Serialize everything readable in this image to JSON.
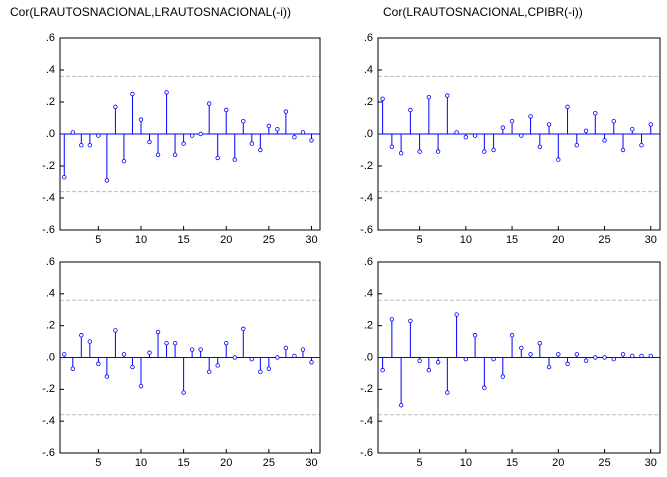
{
  "chart_data": [
    {
      "type": "stem",
      "title": "Cor(LRAUTOSNACIONAL,LRAUTOSNACIONAL(-i))",
      "color": "#0000ff",
      "band_color": "#bbbbbb",
      "x": [
        1,
        2,
        3,
        4,
        5,
        6,
        7,
        8,
        9,
        10,
        11,
        12,
        13,
        14,
        15,
        16,
        17,
        18,
        19,
        20,
        21,
        22,
        23,
        24,
        25,
        26,
        27,
        28,
        29,
        30
      ],
      "values": [
        -0.27,
        0.01,
        -0.07,
        -0.07,
        -0.01,
        -0.29,
        0.17,
        -0.17,
        0.25,
        0.09,
        -0.05,
        -0.13,
        0.26,
        -0.13,
        -0.06,
        -0.01,
        0.0,
        0.19,
        -0.15,
        0.15,
        -0.16,
        0.08,
        -0.06,
        -0.1,
        0.05,
        0.03,
        0.14,
        -0.02,
        0.01,
        -0.04
      ],
      "bands": [
        -0.36,
        0.36
      ],
      "xlim": [
        0.5,
        31
      ],
      "xticks": [
        5,
        10,
        15,
        20,
        25,
        30
      ],
      "ylim": [
        -0.6,
        0.6
      ],
      "yticks": [
        {
          "value": -0.6,
          "label": "-.6"
        },
        {
          "value": -0.4,
          "label": "-.4"
        },
        {
          "value": -0.2,
          "label": "-.2"
        },
        {
          "value": 0,
          "label": ".0"
        },
        {
          "value": 0.2,
          "label": ".2"
        },
        {
          "value": 0.4,
          "label": ".4"
        },
        {
          "value": 0.6,
          "label": ".6"
        }
      ]
    },
    {
      "type": "stem",
      "title": "Cor(LRAUTOSNACIONAL,CPIBR(-i))",
      "color": "#0000ff",
      "band_color": "#bbbbbb",
      "x": [
        1,
        2,
        3,
        4,
        5,
        6,
        7,
        8,
        9,
        10,
        11,
        12,
        13,
        14,
        15,
        16,
        17,
        18,
        19,
        20,
        21,
        22,
        23,
        24,
        25,
        26,
        27,
        28,
        29,
        30
      ],
      "values": [
        0.22,
        -0.08,
        -0.12,
        0.15,
        -0.11,
        0.23,
        -0.11,
        0.24,
        0.01,
        -0.02,
        -0.01,
        -0.11,
        -0.1,
        0.04,
        0.08,
        -0.01,
        0.11,
        -0.08,
        0.06,
        -0.16,
        0.17,
        -0.07,
        0.02,
        0.13,
        -0.04,
        0.08,
        -0.1,
        0.03,
        -0.07,
        0.06
      ],
      "bands": [
        -0.36,
        0.36
      ],
      "xlim": [
        0.5,
        31
      ],
      "xticks": [
        5,
        10,
        15,
        20,
        25,
        30
      ],
      "ylim": [
        -0.6,
        0.6
      ],
      "yticks": [
        {
          "value": -0.6,
          "label": "-.6"
        },
        {
          "value": -0.4,
          "label": "-.4"
        },
        {
          "value": -0.2,
          "label": "-.2"
        },
        {
          "value": 0,
          "label": ".0"
        },
        {
          "value": 0.2,
          "label": ".2"
        },
        {
          "value": 0.4,
          "label": ".4"
        },
        {
          "value": 0.6,
          "label": ".6"
        }
      ]
    },
    {
      "type": "stem",
      "color": "#0000ff",
      "band_color": "#bbbbbb",
      "x": [
        1,
        2,
        3,
        4,
        5,
        6,
        7,
        8,
        9,
        10,
        11,
        12,
        13,
        14,
        15,
        16,
        17,
        18,
        19,
        20,
        21,
        22,
        23,
        24,
        25,
        26,
        27,
        28,
        29,
        30
      ],
      "values": [
        0.02,
        -0.07,
        0.14,
        0.1,
        -0.04,
        -0.12,
        0.17,
        0.02,
        -0.06,
        -0.18,
        0.03,
        0.16,
        0.09,
        0.09,
        -0.22,
        0.05,
        0.05,
        -0.09,
        -0.05,
        0.09,
        0.0,
        0.18,
        -0.01,
        -0.09,
        -0.07,
        0.0,
        0.06,
        0.01,
        0.05,
        -0.03
      ],
      "bands": [
        -0.36,
        0.36
      ],
      "xlim": [
        0.5,
        31
      ],
      "xticks": [
        5,
        10,
        15,
        20,
        25,
        30
      ],
      "ylim": [
        -0.6,
        0.6
      ],
      "yticks": [
        {
          "value": -0.6,
          "label": "-.6"
        },
        {
          "value": -0.4,
          "label": "-.4"
        },
        {
          "value": -0.2,
          "label": "-.2"
        },
        {
          "value": 0,
          "label": ".0"
        },
        {
          "value": 0.2,
          "label": ".2"
        },
        {
          "value": 0.4,
          "label": ".4"
        },
        {
          "value": 0.6,
          "label": ".6"
        }
      ]
    },
    {
      "type": "stem",
      "color": "#0000ff",
      "band_color": "#bbbbbb",
      "x": [
        1,
        2,
        3,
        4,
        5,
        6,
        7,
        8,
        9,
        10,
        11,
        12,
        13,
        14,
        15,
        16,
        17,
        18,
        19,
        20,
        21,
        22,
        23,
        24,
        25,
        26,
        27,
        28,
        29,
        30
      ],
      "values": [
        -0.08,
        0.24,
        -0.3,
        0.23,
        -0.02,
        -0.08,
        -0.03,
        -0.22,
        0.27,
        -0.01,
        0.14,
        -0.19,
        -0.01,
        -0.12,
        0.14,
        0.06,
        0.02,
        0.09,
        -0.06,
        0.02,
        -0.04,
        0.02,
        -0.02,
        0.0,
        0.0,
        -0.01,
        0.02,
        0.01,
        0.01,
        0.01
      ],
      "bands": [
        -0.36,
        0.36
      ],
      "xlim": [
        0.5,
        31
      ],
      "xticks": [
        5,
        10,
        15,
        20,
        25,
        30
      ],
      "ylim": [
        -0.6,
        0.6
      ],
      "yticks": [
        {
          "value": -0.6,
          "label": "-.6"
        },
        {
          "value": -0.4,
          "label": "-.4"
        },
        {
          "value": -0.2,
          "label": "-.2"
        },
        {
          "value": 0,
          "label": ".0"
        },
        {
          "value": 0.2,
          "label": ".2"
        },
        {
          "value": 0.4,
          "label": ".4"
        },
        {
          "value": 0.6,
          "label": ".6"
        }
      ]
    }
  ]
}
